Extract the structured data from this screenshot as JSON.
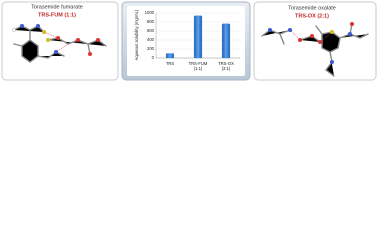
{
  "left_panel": {
    "title": "Torasemide fumarate",
    "label": "TRS-FUM (1:1)"
  },
  "right_panel": {
    "title": "Torasemide oxalate",
    "label": "TRS-OX (2:1)"
  },
  "chart_data": {
    "type": "bar",
    "y_label": "Aqueous solubility (mg/mL)",
    "categories": [
      "TRS",
      "TRS-FUM (1:1)",
      "TRS-OX (2:1)"
    ],
    "values": [
      100,
      940,
      760
    ],
    "color": "#3b82d6",
    "ylim": [
      0,
      1000
    ],
    "yticks": [
      0,
      200,
      400,
      600,
      800,
      1000
    ],
    "grid": true
  }
}
